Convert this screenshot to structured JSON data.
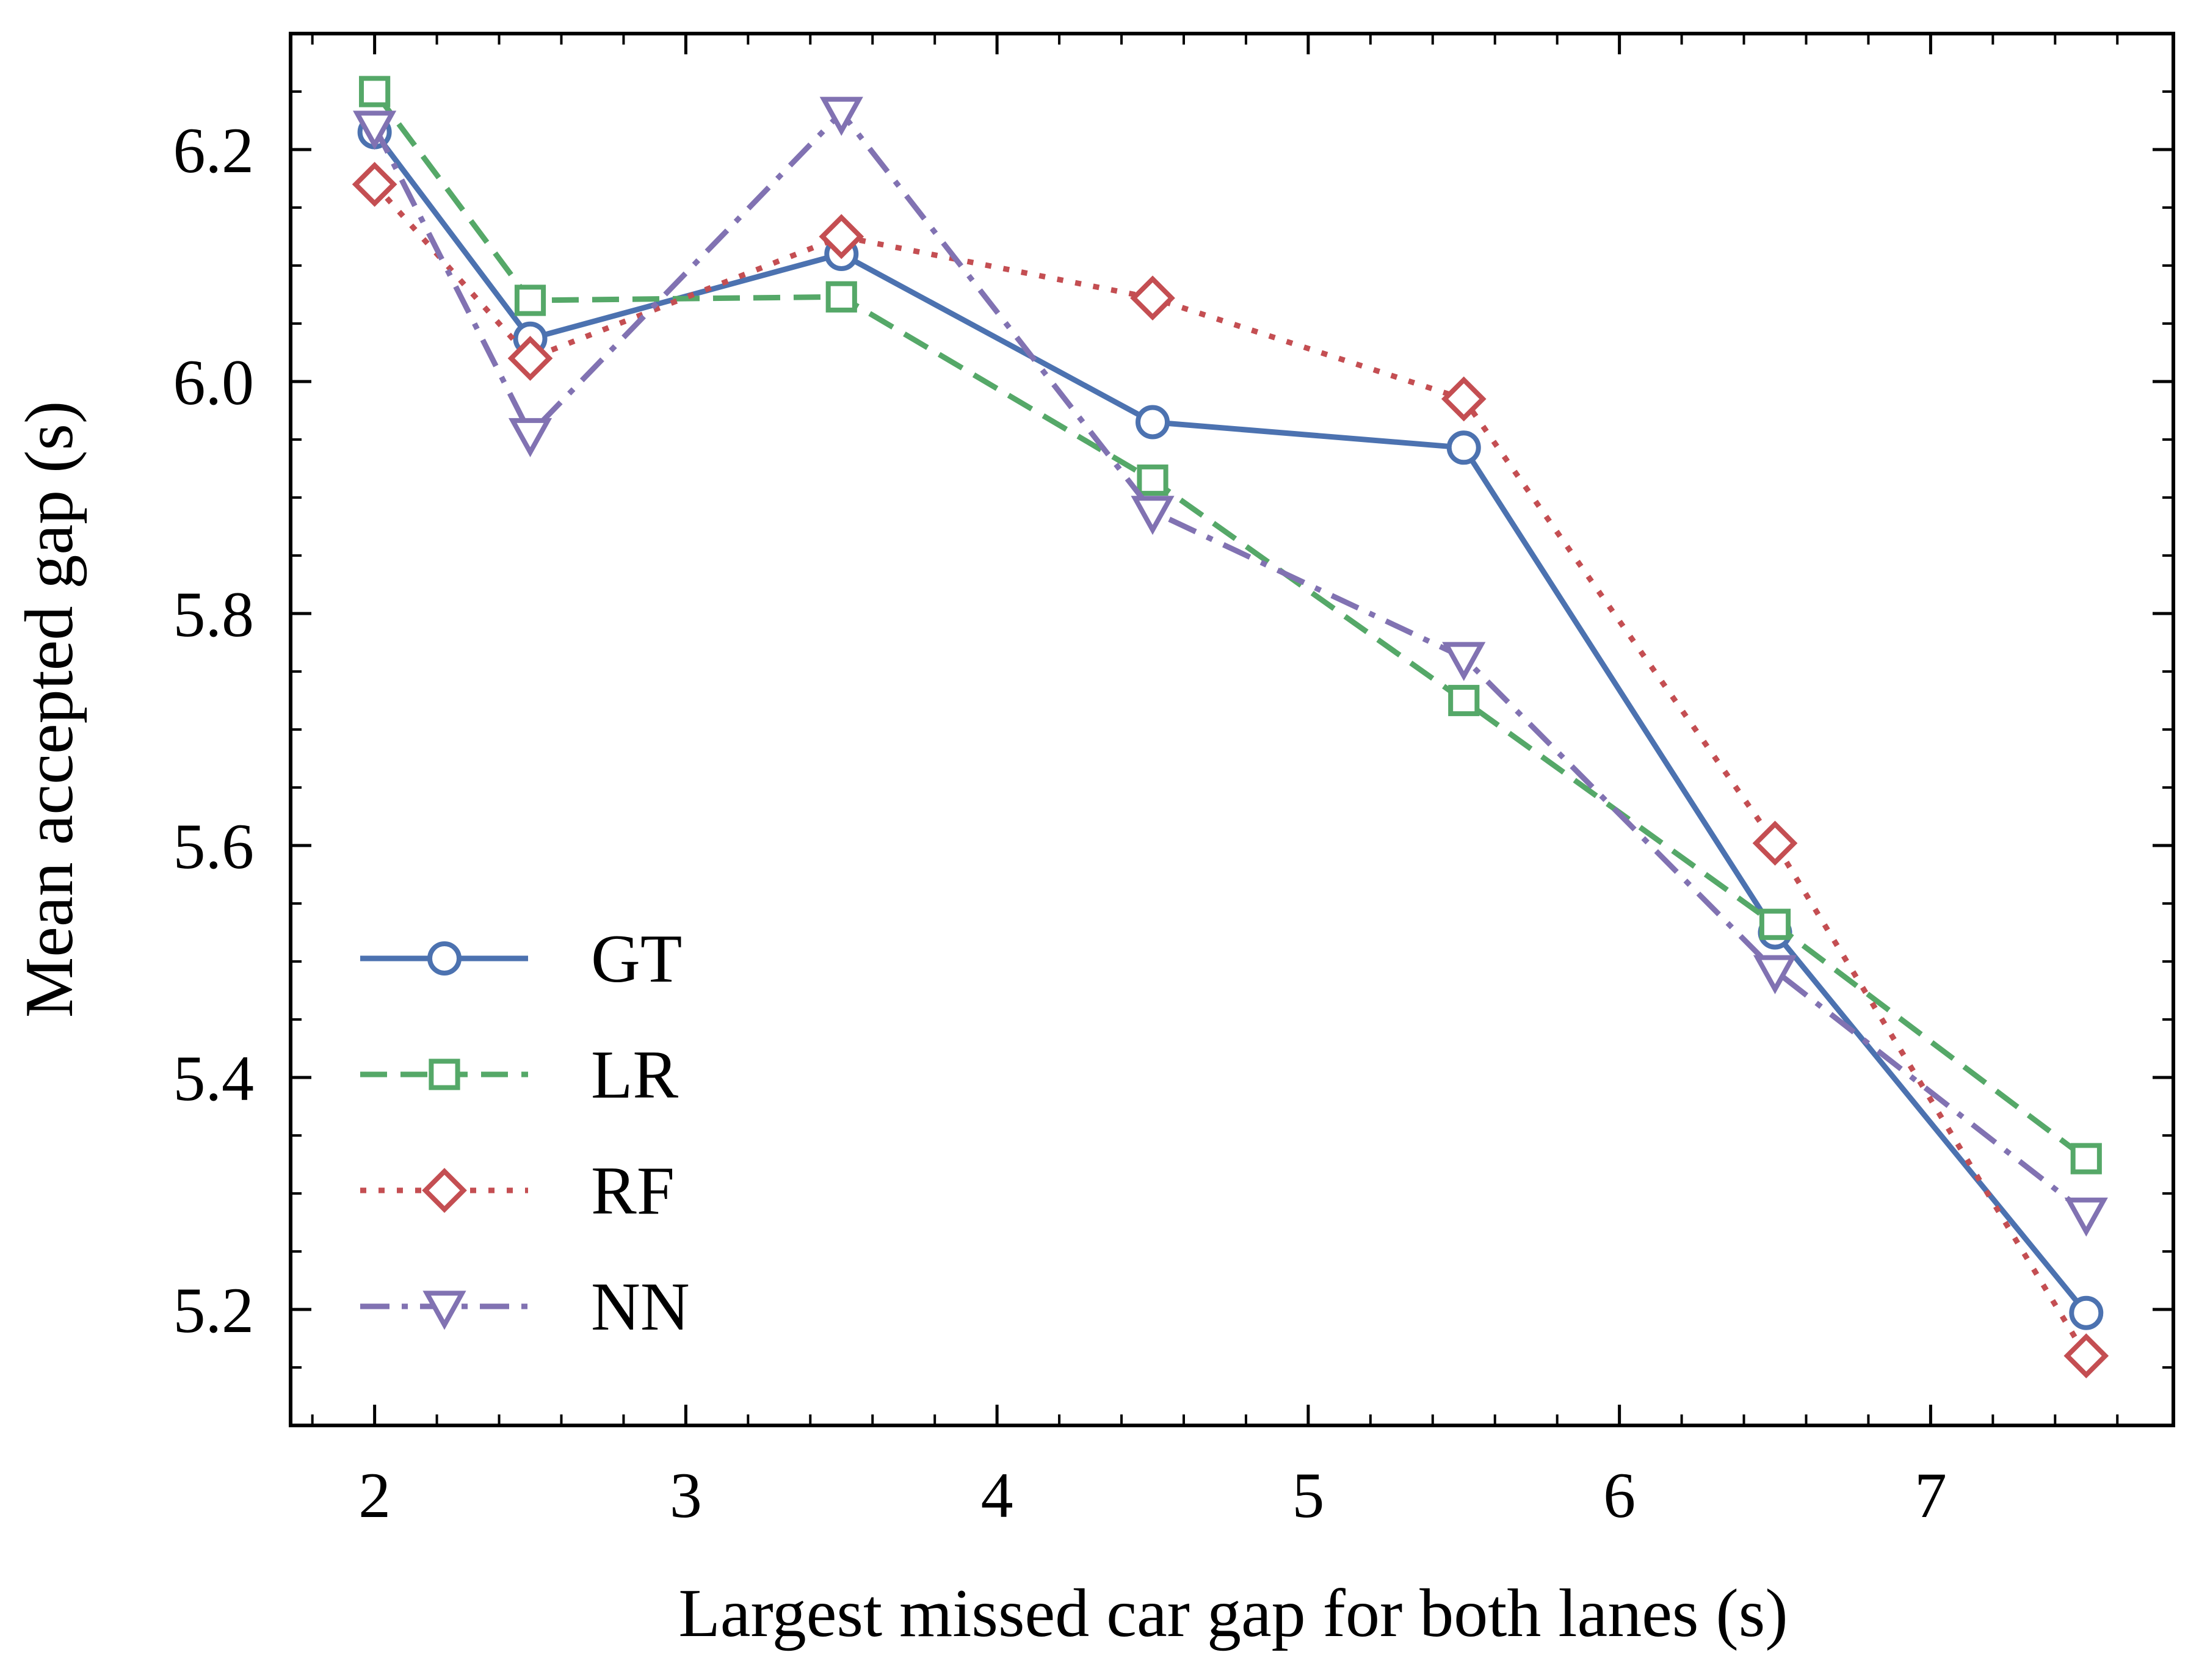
{
  "chart_data": {
    "type": "line",
    "xlabel": "Largest missed car gap for both lanes (s)",
    "ylabel": "Mean accepted gap (s)",
    "xlim": [
      1.73,
      7.78
    ],
    "ylim": [
      5.1,
      6.3
    ],
    "xticks": [
      2,
      3,
      4,
      5,
      6,
      7
    ],
    "yticks": [
      5.2,
      5.4,
      5.6,
      5.8,
      6.0,
      6.2
    ],
    "xtick_labels": [
      "2",
      "3",
      "4",
      "5",
      "6",
      "7"
    ],
    "ytick_labels": [
      "5.2",
      "5.4",
      "5.6",
      "5.8",
      "6.0",
      "6.2"
    ],
    "grid": false,
    "legend_position": "lower-left",
    "x": [
      2,
      2.5,
      3.5,
      4.5,
      5.5,
      6.5,
      7.5
    ],
    "series": [
      {
        "name": "GT",
        "values": [
          6.215,
          6.037,
          6.11,
          5.965,
          5.943,
          5.525,
          5.197
        ],
        "color": "#4c72b0",
        "dash": "solid",
        "marker": "circle"
      },
      {
        "name": "LR",
        "values": [
          6.25,
          6.07,
          6.073,
          5.915,
          5.725,
          5.532,
          5.33
        ],
        "color": "#55a868",
        "dash": "dashed",
        "marker": "square"
      },
      {
        "name": "RF",
        "values": [
          6.17,
          6.02,
          6.125,
          6.072,
          5.985,
          5.602,
          5.16
        ],
        "color": "#c44e52",
        "dash": "dotted",
        "marker": "diamond"
      },
      {
        "name": "NN",
        "values": [
          6.22,
          5.955,
          6.232,
          5.888,
          5.762,
          5.492,
          5.283
        ],
        "color": "#8172b2",
        "dash": "dashdot",
        "marker": "triangle-down"
      }
    ]
  }
}
